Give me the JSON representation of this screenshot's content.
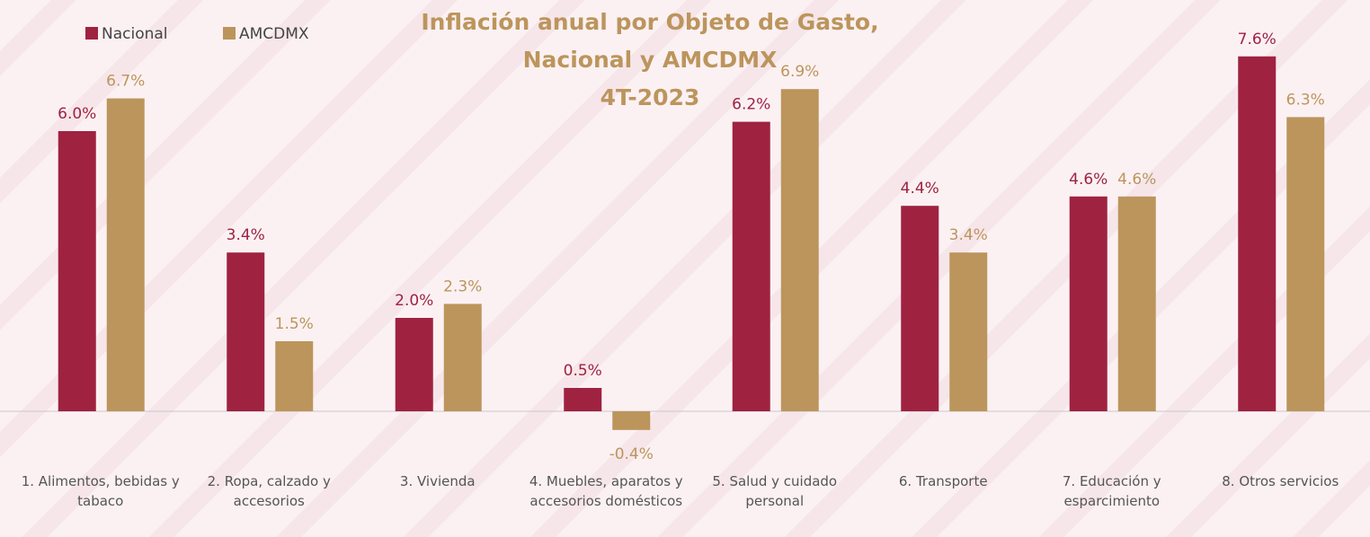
{
  "chart_data": {
    "type": "bar",
    "title": "Inflación anual por Objeto de Gasto, Nacional y AMCDMX",
    "subtitle": "4T-2023",
    "categories": [
      "1. Alimentos, bebidas y tabaco",
      "2. Ropa, calzado y accesorios",
      "3. Vivienda",
      "4. Muebles, aparatos y accesorios domésticos",
      "5. Salud y cuidado personal",
      "6. Transporte",
      "7. Educación y esparcimiento",
      "8. Otros servicios"
    ],
    "series": [
      {
        "name": "Nacional",
        "color": "#9f2241",
        "values": [
          6.0,
          3.4,
          2.0,
          0.5,
          6.2,
          4.4,
          4.6,
          7.6
        ],
        "value_labels": [
          "6.0%",
          "3.4%",
          "2.0%",
          "0.5%",
          "6.2%",
          "4.4%",
          "4.6%",
          "7.6%"
        ]
      },
      {
        "name": "AMCDMX",
        "color": "#bc955c",
        "values": [
          6.7,
          1.5,
          2.3,
          -0.4,
          6.9,
          3.4,
          4.6,
          6.3
        ],
        "value_labels": [
          "6.7%",
          "1.5%",
          "2.3%",
          "-0.4%",
          "6.9%",
          "3.4%",
          "4.6%",
          "6.3%"
        ]
      }
    ],
    "ylim": [
      -1,
      8
    ]
  }
}
